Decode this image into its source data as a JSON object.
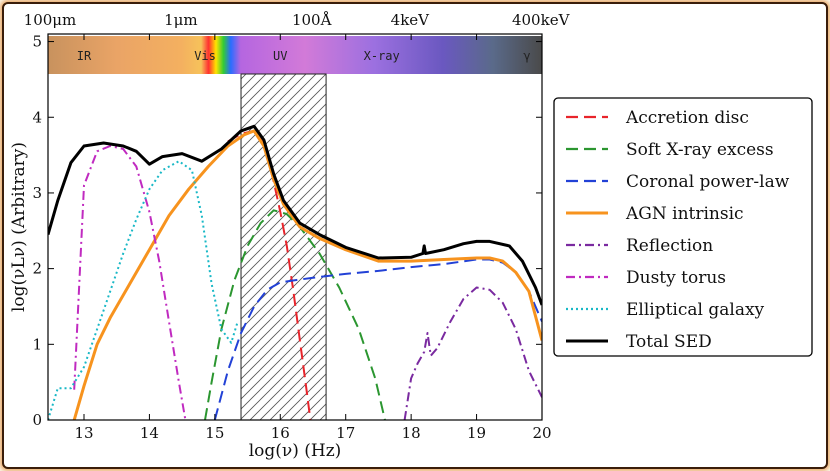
{
  "chart_data": {
    "type": "line",
    "xlabel": "log(ν) (Hz)",
    "ylabel": "log(νLν) (Arbitrary)",
    "xlim": [
      12.45,
      20.0
    ],
    "ylim": [
      0,
      5.1
    ],
    "x_ticks": [
      13,
      14,
      15,
      16,
      17,
      18,
      19,
      20
    ],
    "y_ticks": [
      0,
      1,
      2,
      3,
      4,
      5
    ],
    "top_axis": [
      {
        "label": "100μm",
        "x": 12.48
      },
      {
        "label": "1μm",
        "x": 14.48
      },
      {
        "label": "100Å",
        "x": 16.48
      },
      {
        "label": "4keV",
        "x": 17.98
      },
      {
        "label": "400keV",
        "x": 19.98
      }
    ],
    "bands": [
      {
        "label": "IR",
        "x": 13.0
      },
      {
        "label": "Vis",
        "x": 14.85
      },
      {
        "label": "UV",
        "x": 16.0
      },
      {
        "label": "X-ray",
        "x": 17.55
      },
      {
        "label": "γ",
        "x": 19.77
      }
    ],
    "hatched_region": [
      15.4,
      16.7
    ],
    "series": [
      {
        "name": "Accretion disc",
        "color": "#e8242b",
        "dash": "dashed",
        "points": [
          [
            15.2,
            3.68
          ],
          [
            15.4,
            3.78
          ],
          [
            15.6,
            3.82
          ],
          [
            15.75,
            3.65
          ],
          [
            15.9,
            3.15
          ],
          [
            16.0,
            2.75
          ],
          [
            16.1,
            2.3
          ],
          [
            16.2,
            1.7
          ],
          [
            16.3,
            1.05
          ],
          [
            16.4,
            0.4
          ],
          [
            16.46,
            0
          ]
        ]
      },
      {
        "name": "Soft X-ray excess",
        "color": "#2b9630",
        "dash": "dashed",
        "points": [
          [
            14.85,
            0
          ],
          [
            14.95,
            0.5
          ],
          [
            15.1,
            1.2
          ],
          [
            15.3,
            1.85
          ],
          [
            15.5,
            2.3
          ],
          [
            15.7,
            2.6
          ],
          [
            15.9,
            2.77
          ],
          [
            16.1,
            2.72
          ],
          [
            16.3,
            2.55
          ],
          [
            16.6,
            2.2
          ],
          [
            16.9,
            1.75
          ],
          [
            17.2,
            1.2
          ],
          [
            17.45,
            0.55
          ],
          [
            17.6,
            0
          ]
        ]
      },
      {
        "name": "Coronal power-law",
        "color": "#2241d6",
        "dash": "dashed",
        "points": [
          [
            15.0,
            0
          ],
          [
            15.2,
            0.65
          ],
          [
            15.4,
            1.15
          ],
          [
            15.6,
            1.5
          ],
          [
            15.8,
            1.72
          ],
          [
            16.0,
            1.82
          ],
          [
            16.5,
            1.88
          ],
          [
            17.0,
            1.93
          ],
          [
            17.5,
            1.97
          ],
          [
            18.0,
            2.02
          ],
          [
            18.5,
            2.06
          ],
          [
            19.0,
            2.12
          ],
          [
            19.2,
            2.12
          ],
          [
            19.4,
            2.08
          ],
          [
            19.6,
            1.95
          ],
          [
            19.8,
            1.7
          ],
          [
            20.0,
            1.3
          ]
        ]
      },
      {
        "name": "AGN intrinsic",
        "color": "#f7931e",
        "dash": "solid",
        "points": [
          [
            12.85,
            0
          ],
          [
            13.0,
            0.45
          ],
          [
            13.2,
            1.0
          ],
          [
            13.4,
            1.35
          ],
          [
            13.7,
            1.8
          ],
          [
            14.0,
            2.25
          ],
          [
            14.3,
            2.7
          ],
          [
            14.6,
            3.05
          ],
          [
            14.9,
            3.35
          ],
          [
            15.2,
            3.62
          ],
          [
            15.45,
            3.77
          ],
          [
            15.6,
            3.82
          ],
          [
            15.75,
            3.62
          ],
          [
            15.9,
            3.18
          ],
          [
            16.05,
            2.85
          ],
          [
            16.3,
            2.55
          ],
          [
            16.6,
            2.4
          ],
          [
            17.0,
            2.25
          ],
          [
            17.5,
            2.1
          ],
          [
            18.0,
            2.1
          ],
          [
            18.5,
            2.12
          ],
          [
            19.0,
            2.14
          ],
          [
            19.2,
            2.14
          ],
          [
            19.4,
            2.1
          ],
          [
            19.6,
            1.95
          ],
          [
            19.8,
            1.7
          ],
          [
            20.0,
            1.05
          ]
        ]
      },
      {
        "name": "Reflection",
        "color": "#7a2aa0",
        "dash": "dashdot",
        "points": [
          [
            17.9,
            0
          ],
          [
            18.0,
            0.55
          ],
          [
            18.1,
            0.75
          ],
          [
            18.2,
            0.9
          ],
          [
            18.25,
            1.15
          ],
          [
            18.3,
            0.85
          ],
          [
            18.4,
            0.95
          ],
          [
            18.6,
            1.3
          ],
          [
            18.8,
            1.6
          ],
          [
            19.0,
            1.75
          ],
          [
            19.2,
            1.72
          ],
          [
            19.4,
            1.55
          ],
          [
            19.6,
            1.2
          ],
          [
            19.8,
            0.65
          ],
          [
            20.0,
            0.3
          ]
        ]
      },
      {
        "name": "Dusty torus",
        "color": "#c02ac0",
        "dash": "dashdot",
        "points": [
          [
            12.85,
            0.4
          ],
          [
            13.0,
            3.1
          ],
          [
            13.2,
            3.55
          ],
          [
            13.4,
            3.62
          ],
          [
            13.6,
            3.58
          ],
          [
            13.8,
            3.35
          ],
          [
            14.0,
            2.75
          ],
          [
            14.15,
            2.1
          ],
          [
            14.3,
            1.3
          ],
          [
            14.45,
            0.5
          ],
          [
            14.55,
            0
          ]
        ]
      },
      {
        "name": "Elliptical galaxy",
        "color": "#19b8c6",
        "dash": "dotted",
        "points": [
          [
            12.45,
            0
          ],
          [
            12.6,
            0.42
          ],
          [
            12.8,
            0.42
          ],
          [
            13.0,
            0.7
          ],
          [
            13.2,
            1.2
          ],
          [
            13.4,
            1.7
          ],
          [
            13.6,
            2.2
          ],
          [
            13.8,
            2.65
          ],
          [
            14.0,
            3.05
          ],
          [
            14.2,
            3.3
          ],
          [
            14.45,
            3.42
          ],
          [
            14.65,
            3.3
          ],
          [
            14.8,
            2.7
          ],
          [
            14.95,
            1.8
          ],
          [
            15.1,
            1.2
          ],
          [
            15.25,
            1.02
          ],
          [
            15.35,
            1.3
          ]
        ]
      },
      {
        "name": "Total SED",
        "color": "#000000",
        "dash": "solid",
        "points": [
          [
            12.45,
            2.45
          ],
          [
            12.6,
            2.9
          ],
          [
            12.8,
            3.4
          ],
          [
            13.0,
            3.62
          ],
          [
            13.3,
            3.66
          ],
          [
            13.6,
            3.62
          ],
          [
            13.8,
            3.55
          ],
          [
            14.0,
            3.38
          ],
          [
            14.2,
            3.48
          ],
          [
            14.5,
            3.52
          ],
          [
            14.8,
            3.42
          ],
          [
            15.1,
            3.58
          ],
          [
            15.4,
            3.82
          ],
          [
            15.6,
            3.88
          ],
          [
            15.75,
            3.7
          ],
          [
            15.9,
            3.25
          ],
          [
            16.05,
            2.9
          ],
          [
            16.3,
            2.6
          ],
          [
            16.6,
            2.45
          ],
          [
            17.0,
            2.28
          ],
          [
            17.5,
            2.14
          ],
          [
            18.0,
            2.15
          ],
          [
            18.18,
            2.2
          ],
          [
            18.2,
            2.3
          ],
          [
            18.22,
            2.2
          ],
          [
            18.5,
            2.25
          ],
          [
            18.8,
            2.33
          ],
          [
            19.0,
            2.36
          ],
          [
            19.2,
            2.36
          ],
          [
            19.5,
            2.3
          ],
          [
            19.7,
            2.1
          ],
          [
            19.9,
            1.75
          ],
          [
            20.0,
            1.52
          ]
        ]
      }
    ]
  }
}
